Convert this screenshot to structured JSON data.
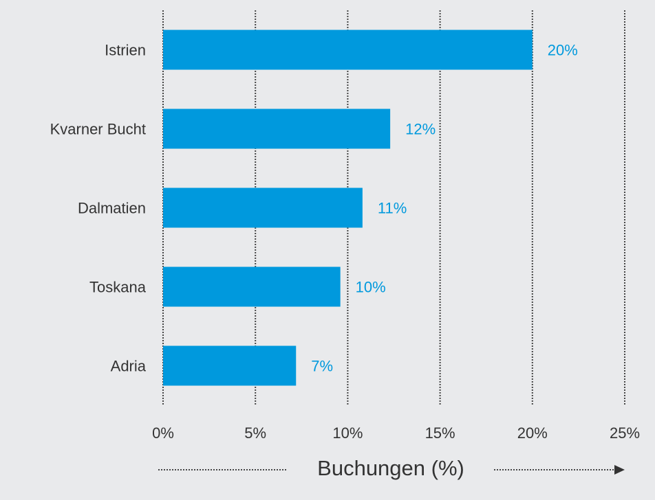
{
  "chart_data": {
    "type": "bar",
    "orientation": "horizontal",
    "x_label": "Buchungen (%)",
    "categories": [
      "Istrien",
      "Kvarner Bucht",
      "Dalmatien",
      "Toskana",
      "Adria"
    ],
    "values": [
      20,
      12.3,
      10.8,
      9.6,
      7.2
    ],
    "value_labels": [
      "20%",
      "12%",
      "11%",
      "10%",
      "7%"
    ],
    "color": "#0099dd",
    "xlim": [
      0,
      25
    ],
    "xticks": [
      {
        "value": 0,
        "label": "0%"
      },
      {
        "value": 5,
        "label": "5%"
      },
      {
        "value": 10,
        "label": "10%"
      },
      {
        "value": 15,
        "label": "15%"
      },
      {
        "value": 20,
        "label": "20%"
      },
      {
        "value": 25,
        "label": "25%"
      }
    ],
    "grid": true
  }
}
